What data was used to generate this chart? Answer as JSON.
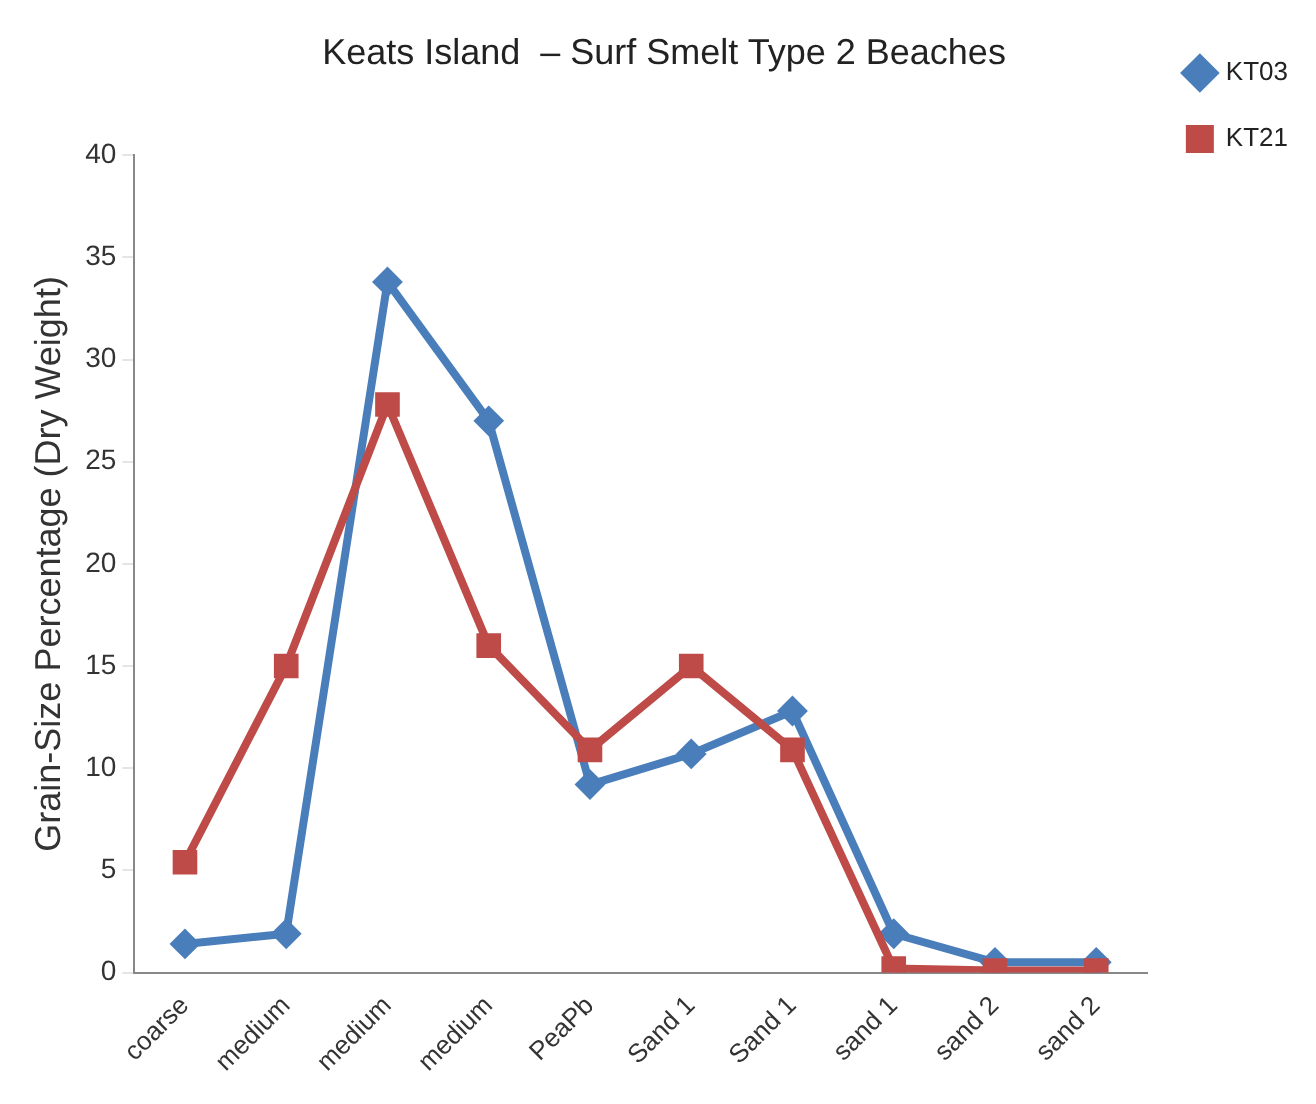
{
  "chart_data": {
    "type": "line",
    "title": "Keats Island  – Surf Smelt Type 2 Beaches",
    "ylabel": "Grain-Size Percentage (Dry Weight)",
    "categories": [
      "coarse",
      "medium",
      "medium",
      "medium",
      "PeaPb",
      "Sand 1",
      "Sand 1",
      "sand 1",
      "sand 2",
      "sand 2"
    ],
    "series": [
      {
        "name": "KT03",
        "color": "#4a7ebb",
        "marker": "diamond",
        "values": [
          1.4,
          1.9,
          33.8,
          27,
          9.2,
          10.7,
          12.8,
          1.9,
          0.5,
          0.5
        ]
      },
      {
        "name": "KT21",
        "color": "#be4b48",
        "marker": "square",
        "values": [
          5.4,
          15,
          27.8,
          16,
          10.9,
          15,
          10.9,
          0.2,
          0.1,
          0.1
        ]
      }
    ],
    "ylim": [
      0,
      40
    ],
    "yticks": [
      0,
      5,
      10,
      15,
      20,
      25,
      30,
      35,
      40
    ],
    "grid": false,
    "legend": "right",
    "line_style": "solid"
  }
}
